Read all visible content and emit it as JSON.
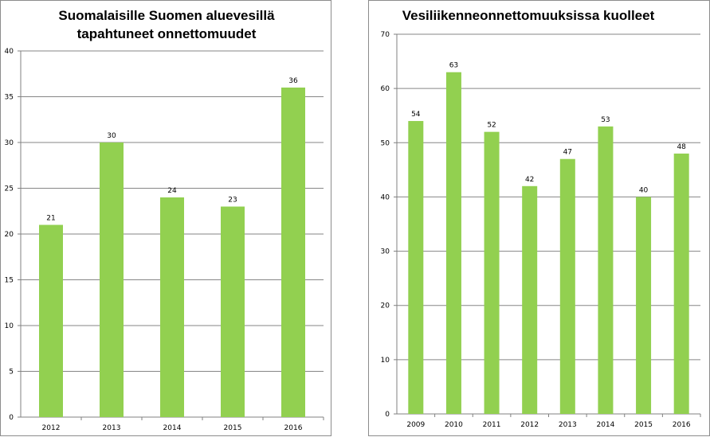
{
  "chart_data": [
    {
      "type": "bar",
      "title_lines": [
        "Suomalaisille Suomen aluevesillä",
        "tapahtuneet onnettomuudet"
      ],
      "categories": [
        "2012",
        "2013",
        "2014",
        "2015",
        "2016"
      ],
      "values": [
        21,
        30,
        24,
        23,
        36
      ],
      "ylim": [
        0,
        40
      ],
      "ytick_step": 5,
      "grid": true,
      "legend": "none",
      "bar_color": "#92d050"
    },
    {
      "type": "bar",
      "title_lines": [
        "Vesiliikenneonnettomuuksissa kuolleet"
      ],
      "categories": [
        "2009",
        "2010",
        "2011",
        "2012",
        "2013",
        "2014",
        "2015",
        "2016"
      ],
      "values": [
        54,
        63,
        52,
        42,
        47,
        53,
        40,
        48
      ],
      "ylim": [
        0,
        70
      ],
      "ytick_step": 10,
      "grid": true,
      "legend": "none",
      "bar_color": "#92d050"
    }
  ]
}
